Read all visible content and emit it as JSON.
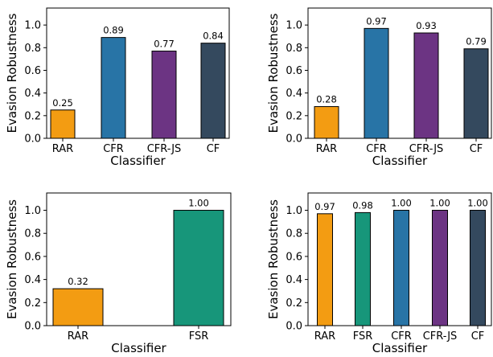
{
  "chart_data": [
    {
      "type": "bar",
      "xlabel": "Classifier",
      "ylabel": "Evasion Robustness",
      "ylim": [
        0,
        1.15
      ],
      "yticks": [
        "0.0",
        "0.2",
        "0.4",
        "0.6",
        "0.8",
        "1.0"
      ],
      "categories": [
        "RAR",
        "CFR",
        "CFR-JS",
        "CF"
      ],
      "values": [
        0.25,
        0.89,
        0.77,
        0.84
      ],
      "value_labels": [
        "0.25",
        "0.89",
        "0.77",
        "0.84"
      ],
      "colors": [
        "#f39c12",
        "#2874a6",
        "#6c3483",
        "#34495e"
      ]
    },
    {
      "type": "bar",
      "xlabel": "Classifier",
      "ylabel": "Evasion Robustness",
      "ylim": [
        0,
        1.15
      ],
      "yticks": [
        "0.0",
        "0.2",
        "0.4",
        "0.6",
        "0.8",
        "1.0"
      ],
      "categories": [
        "RAR",
        "CFR",
        "CFR-JS",
        "CF"
      ],
      "values": [
        0.28,
        0.97,
        0.93,
        0.79
      ],
      "value_labels": [
        "0.28",
        "0.97",
        "0.93",
        "0.79"
      ],
      "colors": [
        "#f39c12",
        "#2874a6",
        "#6c3483",
        "#34495e"
      ]
    },
    {
      "type": "bar",
      "xlabel": "Classifier",
      "ylabel": "Evasion Robustness",
      "ylim": [
        0,
        1.15
      ],
      "yticks": [
        "0.0",
        "0.2",
        "0.4",
        "0.6",
        "0.8",
        "1.0"
      ],
      "categories": [
        "RAR",
        "FSR"
      ],
      "values": [
        0.32,
        1.0
      ],
      "value_labels": [
        "0.32",
        "1.00"
      ],
      "colors": [
        "#f39c12",
        "#17967a"
      ]
    },
    {
      "type": "bar",
      "xlabel": "Classifier",
      "ylabel": "Evasion Robustness",
      "ylim": [
        0,
        1.15
      ],
      "yticks": [
        "0.0",
        "0.2",
        "0.4",
        "0.6",
        "0.8",
        "1.0"
      ],
      "categories": [
        "RAR",
        "FSR",
        "CFR",
        "CFR-JS",
        "CF"
      ],
      "values": [
        0.97,
        0.98,
        1.0,
        1.0,
        1.0
      ],
      "value_labels": [
        "0.97",
        "0.98",
        "1.00",
        "1.00",
        "1.00"
      ],
      "colors": [
        "#f39c12",
        "#17967a",
        "#2874a6",
        "#6c3483",
        "#34495e"
      ]
    }
  ]
}
